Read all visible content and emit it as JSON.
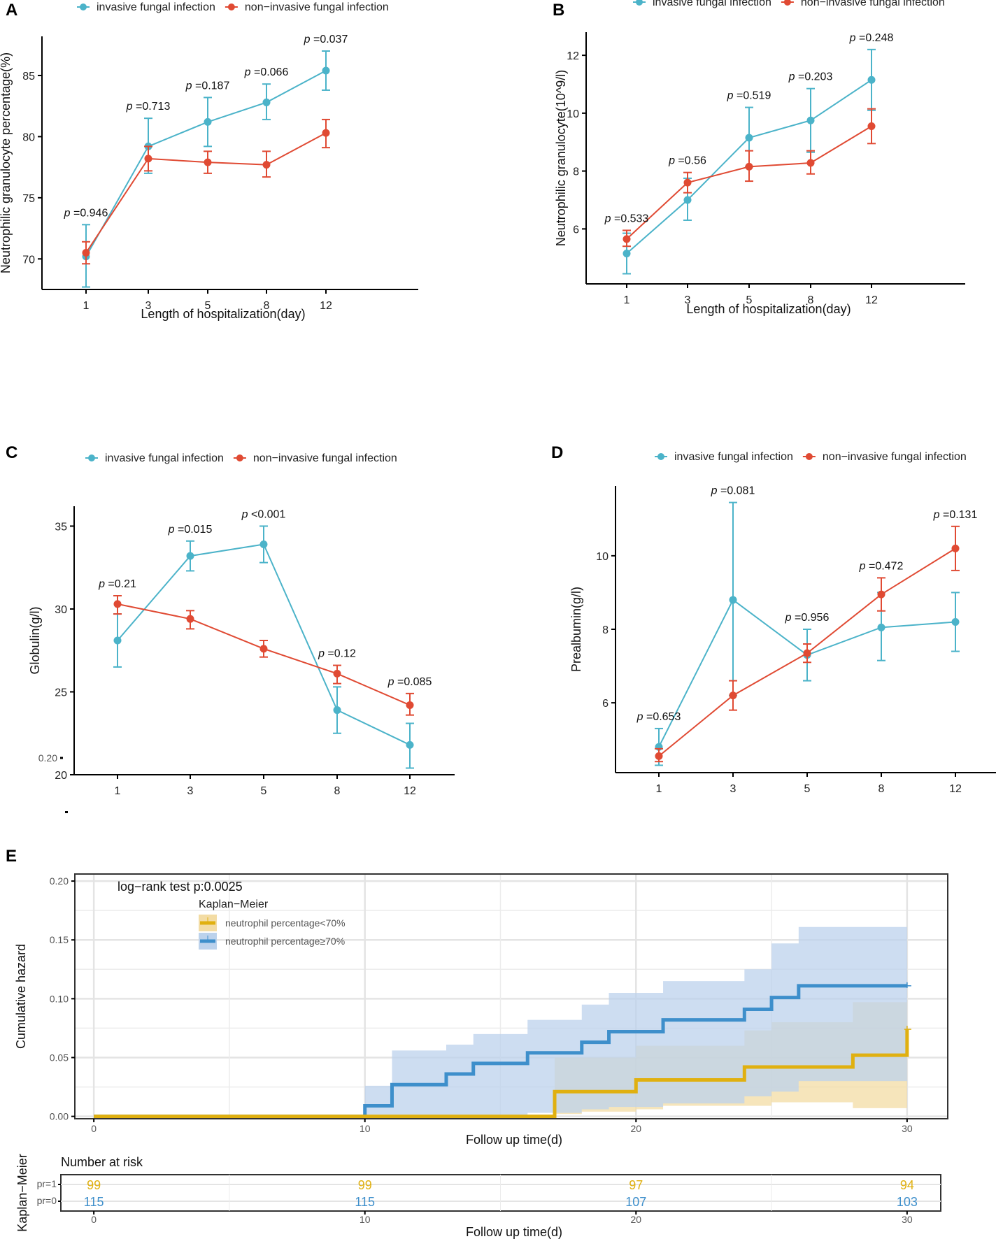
{
  "colors": {
    "invasive": "#4BB3C9",
    "noninvasive": "#E04A33",
    "km_low": "#E0B010",
    "km_high": "#3E8FCB",
    "km_low_fill": "#F3DCA4",
    "km_high_fill": "#BCD2EC"
  },
  "chart_data": [
    {
      "panel": "A",
      "type": "line",
      "legend": [
        "invasive fungal infection",
        "non−invasive fungal infection"
      ],
      "legend_position": "top",
      "xlabel": "Length of hospitalization(day)",
      "ylabel": "Neutrophilic granulocyte percentage(%)",
      "categories": [
        "1",
        "3",
        "5",
        "8",
        "12"
      ],
      "yticks": [
        70,
        75,
        80,
        85
      ],
      "ylim": [
        67.5,
        88.2
      ],
      "series": [
        {
          "name": "invasive fungal infection",
          "values": [
            70.2,
            79.2,
            81.2,
            82.8,
            85.4
          ],
          "lower": [
            67.7,
            77.0,
            79.2,
            81.4,
            83.8
          ],
          "upper": [
            72.8,
            81.5,
            83.2,
            84.3,
            87.0
          ]
        },
        {
          "name": "non−invasive fungal infection",
          "values": [
            70.5,
            78.2,
            77.9,
            77.7,
            80.3
          ],
          "lower": [
            69.6,
            77.2,
            77.0,
            76.7,
            79.1
          ],
          "upper": [
            71.4,
            79.2,
            78.8,
            78.8,
            81.4
          ]
        }
      ],
      "annotations": [
        "p =0.946",
        "p =0.713",
        "p =0.187",
        "p =0.066",
        "p =0.037"
      ]
    },
    {
      "panel": "B",
      "type": "line",
      "legend": [
        "invasive fungal infection",
        "non−invasive fungal infection"
      ],
      "legend_position": "top",
      "xlabel": "Length of hospitalization(day)",
      "ylabel": "Neutrophilic granulocyte(10^9/l)",
      "categories": [
        "1",
        "3",
        "5",
        "8",
        "12"
      ],
      "yticks": [
        6,
        8,
        10,
        12
      ],
      "ylim": [
        4.1,
        12.8
      ],
      "series": [
        {
          "name": "invasive fungal infection",
          "values": [
            5.15,
            7.0,
            9.15,
            9.75,
            11.15
          ],
          "lower": [
            4.45,
            6.3,
            8.15,
            8.65,
            10.1
          ],
          "upper": [
            5.85,
            7.75,
            10.2,
            10.85,
            12.2
          ]
        },
        {
          "name": "non−invasive fungal infection",
          "values": [
            5.65,
            7.6,
            8.15,
            8.28,
            9.55
          ],
          "lower": [
            5.4,
            7.25,
            7.65,
            7.9,
            8.95
          ],
          "upper": [
            5.95,
            7.95,
            8.7,
            8.7,
            10.15
          ]
        }
      ],
      "annotations": [
        "p =0.533",
        "p =0.56",
        "p =0.519",
        "p =0.203",
        "p =0.248"
      ]
    },
    {
      "panel": "C",
      "type": "line",
      "legend": [
        "invasive fungal infection",
        "non−invasive fungal infection"
      ],
      "legend_position": "top",
      "xlabel": "",
      "ylabel": "Globulin(g/l)",
      "categories": [
        "1",
        "3",
        "5",
        "8",
        "12"
      ],
      "yticks": [
        20,
        25,
        30,
        35
      ],
      "extra_ytick": "0.20",
      "ylim": [
        20,
        36.2
      ],
      "series": [
        {
          "name": "invasive fungal infection",
          "values": [
            28.1,
            33.2,
            33.9,
            23.9,
            21.8
          ],
          "lower": [
            26.5,
            32.3,
            32.8,
            22.5,
            20.4
          ],
          "upper": [
            29.7,
            34.1,
            35.0,
            25.3,
            23.1
          ]
        },
        {
          "name": "non−invasive fungal infection",
          "values": [
            30.3,
            29.4,
            27.6,
            26.1,
            24.2
          ],
          "lower": [
            29.7,
            28.8,
            27.1,
            25.5,
            23.6
          ],
          "upper": [
            30.8,
            29.9,
            28.1,
            26.6,
            24.9
          ]
        }
      ],
      "annotations": [
        "p =0.21",
        "p =0.015",
        "p <0.001",
        "p =0.12",
        "p =0.085"
      ]
    },
    {
      "panel": "D",
      "type": "line",
      "legend": [
        "invasive fungal infection",
        "non−invasive fungal infection"
      ],
      "legend_position": "top",
      "xlabel": "",
      "ylabel": "Prealbumin(g/l)",
      "categories": [
        "1",
        "3",
        "5",
        "8",
        "12"
      ],
      "yticks": [
        6,
        8,
        10
      ],
      "ylim": [
        4.1,
        11.9
      ],
      "series": [
        {
          "name": "invasive fungal infection",
          "values": [
            4.8,
            8.8,
            7.3,
            8.05,
            8.2
          ],
          "lower": [
            4.3,
            6.2,
            6.6,
            7.15,
            7.4
          ],
          "upper": [
            5.3,
            11.45,
            8.0,
            9.0,
            9.0
          ]
        },
        {
          "name": "non−invasive fungal infection",
          "values": [
            4.55,
            6.2,
            7.35,
            8.95,
            10.2
          ],
          "lower": [
            4.4,
            5.8,
            7.1,
            8.5,
            9.6
          ],
          "upper": [
            4.75,
            6.6,
            7.6,
            9.4,
            10.8
          ]
        }
      ],
      "annotations": [
        "p =0.653",
        "p =0.081",
        "p =0.956",
        "p =0.472",
        "p =0.131"
      ]
    },
    {
      "panel": "E",
      "type": "line",
      "subtype": "kaplan-meier cumulative hazard (step)",
      "title": "log−rank test p:0.0025",
      "legend_title": "Kaplan−Meier",
      "legend": [
        "neutrophil percentage<70%",
        "neutrophil percentage≥70%"
      ],
      "legend_position": "top-left inside",
      "xlabel": "Follow up time(d)",
      "ylabel": "Cumulative hazard",
      "xticks": [
        0,
        10,
        20,
        30
      ],
      "yticks": [
        "0.00",
        "0.05",
        "0.10",
        "0.15",
        "0.20"
      ],
      "xlim": [
        -0.7,
        31.5
      ],
      "ylim": [
        -0.002,
        0.206
      ],
      "grid": true,
      "series": [
        {
          "name": "neutrophil percentage<70%",
          "steps_x": [
            0,
            10,
            17,
            20,
            24,
            28,
            30
          ],
          "steps_y": [
            0,
            0,
            0.021,
            0.031,
            0.042,
            0.052,
            0.074
          ],
          "ci_x": [
            10,
            17,
            18,
            20,
            21,
            24,
            25,
            28,
            30
          ],
          "ci_lower": [
            0,
            0.002,
            0.004,
            0.006,
            0.009,
            0.009,
            0.012,
            0.007,
            0.007
          ],
          "ci_upper": [
            0,
            0.05,
            0.05,
            0.06,
            0.06,
            0.073,
            0.08,
            0.097,
            0.097
          ]
        },
        {
          "name": "neutrophil percentage≥70%",
          "steps_x": [
            0,
            10,
            11,
            13,
            14,
            16,
            18,
            19,
            21,
            24,
            25,
            26,
            30
          ],
          "steps_y": [
            0,
            0.009,
            0.027,
            0.036,
            0.045,
            0.054,
            0.063,
            0.072,
            0.082,
            0.091,
            0.101,
            0.111,
            0.111
          ],
          "ci_x": [
            10,
            11,
            13,
            14,
            16,
            18,
            19,
            21,
            24,
            25,
            26,
            30
          ],
          "ci_lower": [
            0,
            0.001,
            0.001,
            0.001,
            0.003,
            0.006,
            0.008,
            0.011,
            0.017,
            0.021,
            0.03,
            0.03
          ],
          "ci_upper": [
            0.026,
            0.056,
            0.061,
            0.07,
            0.082,
            0.095,
            0.105,
            0.115,
            0.125,
            0.147,
            0.161,
            0.173
          ]
        }
      ],
      "risk_table": {
        "title": "Number at risk",
        "ylabel": "Kaplan−Meier",
        "xlabel": "Follow up time(d)",
        "rows": [
          {
            "label": "pr=1",
            "values": [
              99,
              99,
              97,
              94
            ]
          },
          {
            "label": "pr=0",
            "values": [
              115,
              115,
              107,
              103
            ]
          }
        ],
        "times": [
          0,
          10,
          20,
          30
        ]
      }
    }
  ]
}
